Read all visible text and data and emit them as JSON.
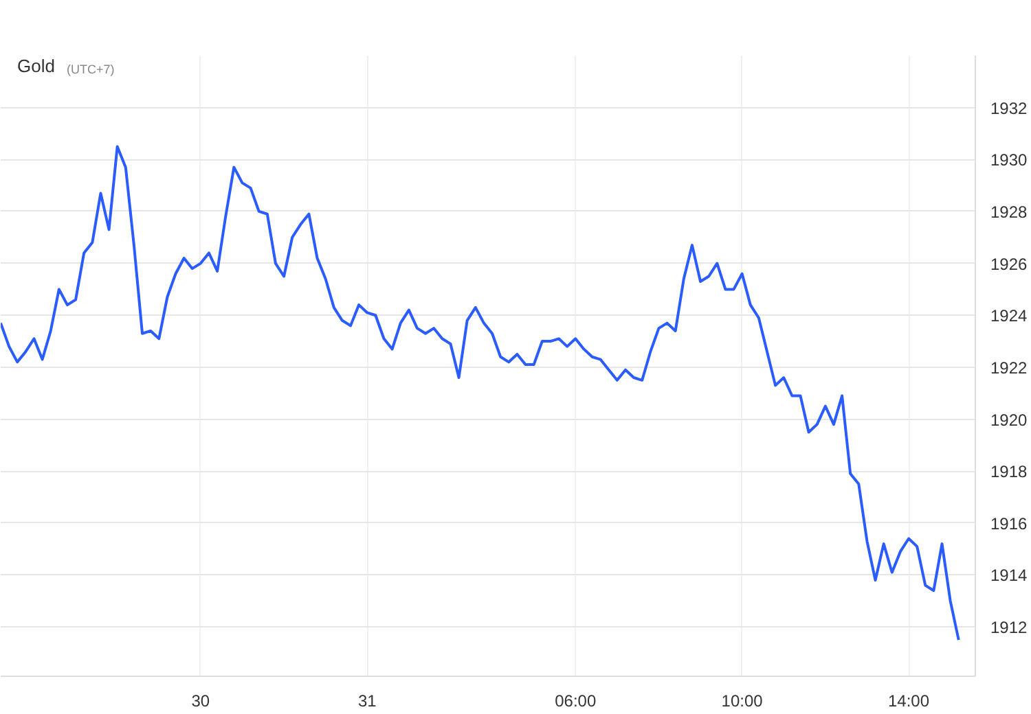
{
  "chart_data": {
    "type": "line",
    "title": "Gold",
    "subtitle": "(UTC+7)",
    "categories": [
      null,
      null,
      null,
      null,
      null,
      null,
      null,
      null,
      null,
      null,
      null,
      null,
      null,
      null,
      null,
      null,
      null,
      null,
      null,
      null,
      null,
      null,
      null,
      null,
      "30",
      null,
      null,
      null,
      null,
      null,
      null,
      null,
      null,
      null,
      null,
      null,
      null,
      null,
      null,
      null,
      null,
      null,
      null,
      null,
      "31",
      null,
      null,
      null,
      null,
      null,
      null,
      null,
      null,
      null,
      null,
      null,
      null,
      null,
      null,
      null,
      null,
      null,
      null,
      null,
      null,
      null,
      null,
      null,
      null,
      "06:00",
      null,
      null,
      null,
      null,
      null,
      null,
      null,
      null,
      null,
      null,
      null,
      null,
      null,
      null,
      null,
      null,
      null,
      null,
      null,
      "10:00",
      null,
      null,
      null,
      null,
      null,
      null,
      null,
      null,
      null,
      null,
      null,
      null,
      null,
      null,
      null,
      null,
      null,
      null,
      null,
      "14:00",
      null,
      null,
      null,
      null,
      null,
      null
    ],
    "series": [
      {
        "color": "#2a5cff",
        "values": [
          1923.7,
          1922.8,
          1922.2,
          1922.6,
          1923.1,
          1922.3,
          1923.4,
          1925.0,
          1924.4,
          1924.6,
          1926.4,
          1926.8,
          1928.7,
          1927.3,
          1930.5,
          1929.7,
          1926.7,
          1923.3,
          1923.4,
          1923.1,
          1924.7,
          1925.6,
          1926.2,
          1925.8,
          1926.0,
          1926.4,
          1925.7,
          1927.8,
          1929.7,
          1929.1,
          1928.9,
          1928.0,
          1927.9,
          1926.0,
          1925.5,
          1927.0,
          1927.5,
          1927.9,
          1926.2,
          1925.4,
          1924.3,
          1923.8,
          1923.6,
          1924.4,
          1924.1,
          1924.0,
          1923.1,
          1922.7,
          1923.7,
          1924.2,
          1923.5,
          1923.3,
          1923.5,
          1923.1,
          1922.9,
          1921.6,
          1923.8,
          1924.3,
          1923.7,
          1923.3,
          1922.4,
          1922.2,
          1922.5,
          1922.1,
          1922.1,
          1923.0,
          1923.0,
          1923.1,
          1922.8,
          1923.1,
          1922.7,
          1922.4,
          1922.3,
          1921.9,
          1921.5,
          1921.9,
          1921.6,
          1921.5,
          1922.6,
          1923.5,
          1923.7,
          1923.4,
          1925.4,
          1926.7,
          1925.3,
          1925.5,
          1926.0,
          1925.0,
          1925.0,
          1925.6,
          1924.4,
          1923.9,
          1922.6,
          1921.3,
          1921.6,
          1920.9,
          1920.9,
          1919.5,
          1919.8,
          1920.5,
          1919.8,
          1920.9,
          1917.9,
          1917.5,
          1915.3,
          1913.8,
          1915.2,
          1914.1,
          1914.9,
          1915.4,
          1915.1,
          1913.6,
          1913.4,
          1915.2,
          1913.0,
          1911.5
        ]
      }
    ],
    "ylim": [
      1910.1,
      1934
    ],
    "yticks": [
      1912,
      1914,
      1916,
      1918,
      1920,
      1922,
      1924,
      1926,
      1928,
      1930,
      1932
    ],
    "grid": true
  }
}
